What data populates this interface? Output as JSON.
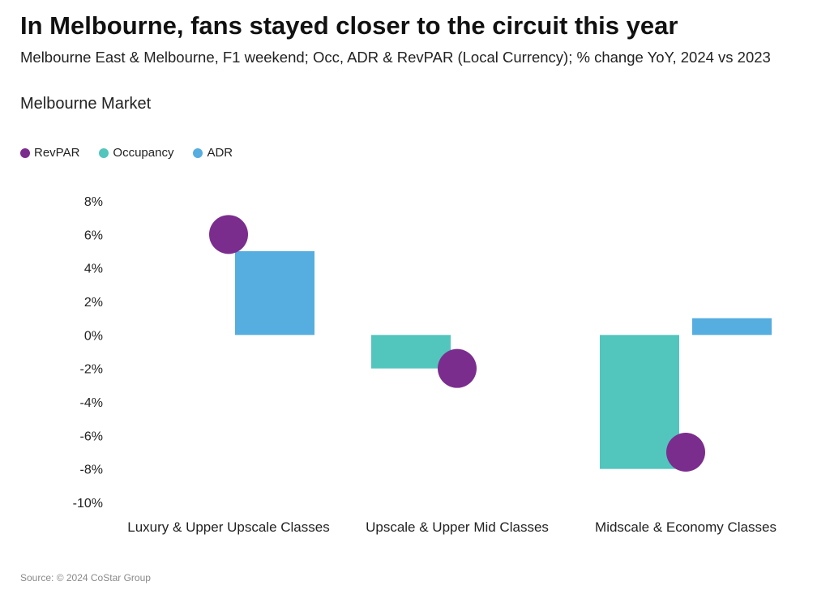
{
  "title": "In Melbourne, fans stayed closer to the circuit this year",
  "subtitle": "Melbourne East & Melbourne, F1 weekend; Occ, ADR & RevPAR (Local Currency); % change YoY, 2024 vs 2023",
  "section_label": "Melbourne Market",
  "source": "Source: © 2024 CoStar Group",
  "legend": [
    {
      "label": "RevPAR",
      "color": "#7B2D8E"
    },
    {
      "label": "Occupancy",
      "color": "#52C5BD"
    },
    {
      "label": "ADR",
      "color": "#55ADE0"
    }
  ],
  "chart_data": {
    "type": "bar",
    "categories": [
      "Luxury & Upper Upscale Classes",
      "Upscale & Upper Mid Classes",
      "Midscale & Economy Classes"
    ],
    "series": [
      {
        "name": "Occupancy",
        "kind": "bar",
        "color": "#52C5BD",
        "values": [
          0,
          -2,
          -8
        ]
      },
      {
        "name": "ADR",
        "kind": "bar",
        "color": "#55ADE0",
        "values": [
          5,
          0,
          1
        ]
      },
      {
        "name": "RevPAR",
        "kind": "dot",
        "color": "#7B2D8E",
        "values": [
          6,
          -2,
          -7
        ]
      }
    ],
    "ylim": [
      -10,
      8
    ],
    "yticks": [
      8,
      6,
      4,
      2,
      0,
      -2,
      -4,
      -6,
      -8,
      -10
    ],
    "ytick_labels": [
      "8%",
      "6%",
      "4%",
      "2%",
      "0%",
      "-2%",
      "-4%",
      "-6%",
      "-8%",
      "-10%"
    ],
    "xlabel": "",
    "ylabel": ""
  }
}
